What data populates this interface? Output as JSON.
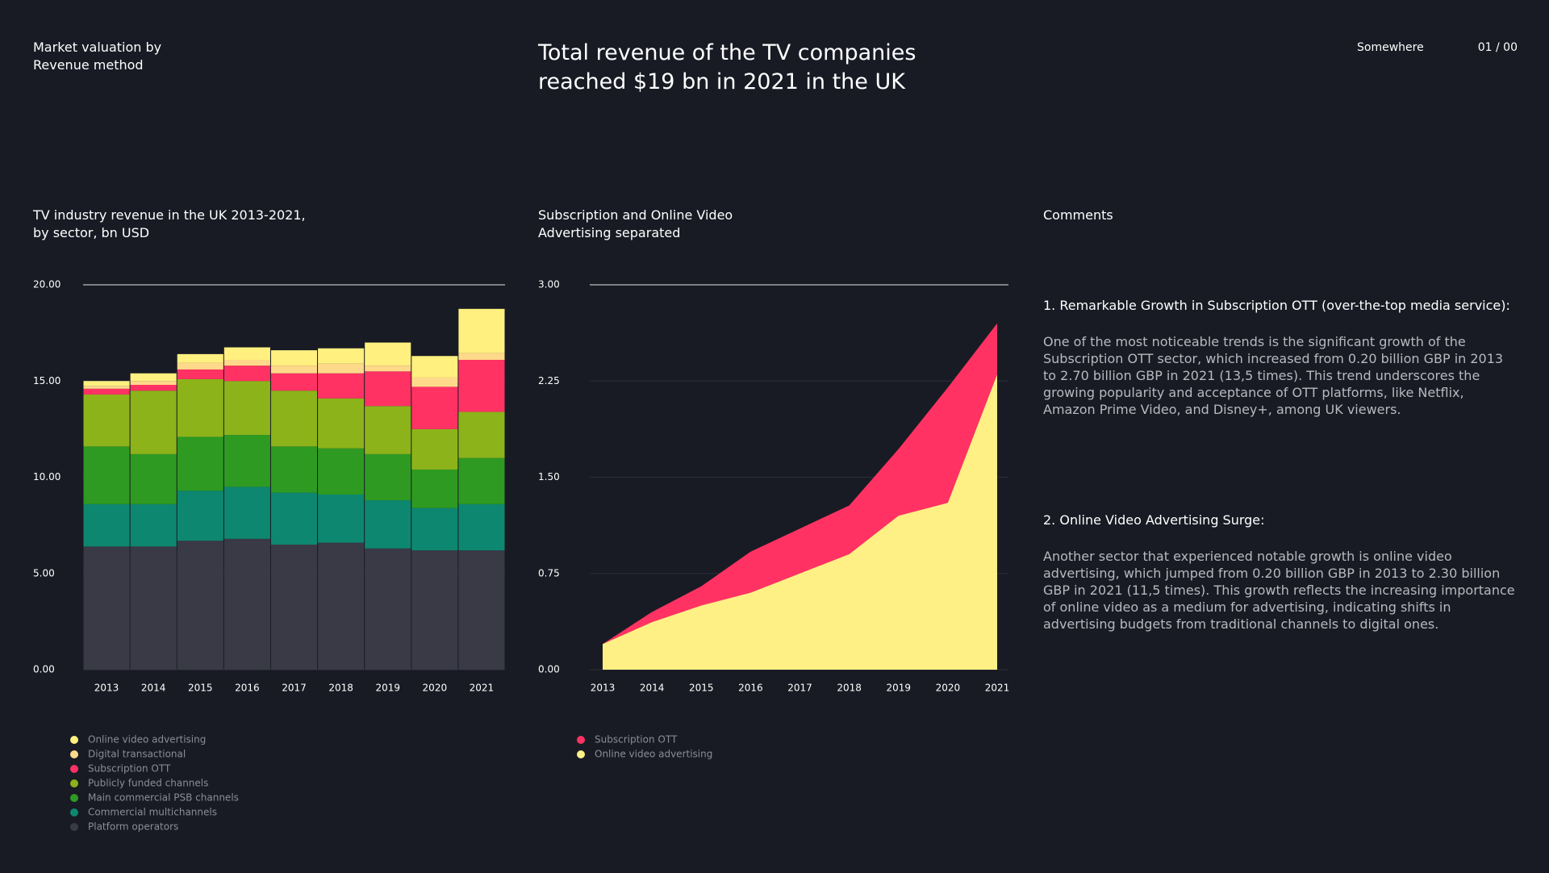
{
  "header": {
    "section": "Market valuation by\nRevenue method",
    "title": "Total revenue of the TV companies\nreached $19 bn in 2021 in the UK",
    "place": "Somewhere",
    "page": "01 / 00"
  },
  "chart_data": [
    {
      "type": "bar",
      "stacked": true,
      "title": "TV industry revenue in the UK 2013-2021,\nby sector, bn USD",
      "categories": [
        "2013",
        "2014",
        "2015",
        "2016",
        "2017",
        "2018",
        "2019",
        "2020",
        "2021"
      ],
      "series": [
        {
          "name": "Platform operators",
          "color": "#3a3a47",
          "values": [
            6.4,
            6.4,
            6.7,
            6.8,
            6.5,
            6.6,
            6.3,
            6.2,
            6.2
          ]
        },
        {
          "name": "Commercial multichannels",
          "color": "#0e8770",
          "values": [
            2.2,
            2.2,
            2.6,
            2.7,
            2.7,
            2.5,
            2.5,
            2.2,
            2.4
          ]
        },
        {
          "name": "Main commercial PSB channels",
          "color": "#2e9a22",
          "values": [
            3.0,
            2.6,
            2.8,
            2.7,
            2.4,
            2.4,
            2.4,
            2.0,
            2.4
          ]
        },
        {
          "name": "Publicly funded channels",
          "color": "#8db31a",
          "values": [
            2.7,
            3.3,
            3.0,
            2.8,
            2.9,
            2.6,
            2.5,
            2.1,
            2.4
          ]
        },
        {
          "name": "Subscription OTT",
          "color": "#ff3263",
          "values": [
            0.3,
            0.3,
            0.5,
            0.8,
            0.9,
            1.3,
            1.8,
            2.2,
            2.7
          ]
        },
        {
          "name": "Digital transactional",
          "color": "#ffd98a",
          "values": [
            0.15,
            0.2,
            0.35,
            0.3,
            0.4,
            0.5,
            0.3,
            0.5,
            0.35
          ]
        },
        {
          "name": "Online video advertising",
          "color": "#fff07f",
          "values": [
            0.25,
            0.4,
            0.45,
            0.65,
            0.8,
            0.8,
            1.2,
            1.1,
            2.3
          ]
        }
      ],
      "ylim": [
        0,
        20
      ],
      "yticks": [
        {
          "value": 0,
          "label": "0.00"
        },
        {
          "value": 5,
          "label": "5.00"
        },
        {
          "value": 10,
          "label": "10.00"
        },
        {
          "value": 15,
          "label": "15.00"
        },
        {
          "value": 20,
          "label": "20.00"
        }
      ],
      "grid": true
    },
    {
      "type": "area",
      "title": "Subscription and Online Video\nAdvertising separated",
      "categories": [
        "2013",
        "2014",
        "2015",
        "2016",
        "2017",
        "2018",
        "2019",
        "2020",
        "2021"
      ],
      "series": [
        {
          "name": "Online video advertising",
          "color": "#fff085",
          "values": [
            0.2,
            0.37,
            0.5,
            0.6,
            0.75,
            0.9,
            1.2,
            1.3,
            2.3
          ]
        },
        {
          "name": "Subscription OTT",
          "color": "#ff3263",
          "values": [
            0.2,
            0.45,
            0.65,
            0.92,
            1.1,
            1.28,
            1.72,
            2.2,
            2.7
          ]
        }
      ],
      "ylim": [
        0,
        3
      ],
      "yticks": [
        {
          "value": 0,
          "label": "0.00"
        },
        {
          "value": 0.75,
          "label": "0.75"
        },
        {
          "value": 1.5,
          "label": "1.50"
        },
        {
          "value": 2.25,
          "label": "2.25"
        },
        {
          "value": 3,
          "label": "3.00"
        }
      ],
      "grid": true
    }
  ],
  "comments": {
    "title": "Comments",
    "items": [
      {
        "heading": "1. Remarkable Growth in Subscription OTT (over-the-top media service):",
        "text": "One of the most noticeable trends is the significant growth of the Subscription OTT sector, which increased from 0.20 billion GBP in 2013 to 2.70 billion GBP in 2021 (13,5 times). This trend underscores the growing popularity and acceptance of OTT platforms, like Netflix, Amazon Prime Video, and Disney+, among UK viewers."
      },
      {
        "heading": "2. Online Video Advertising Surge:",
        "text": "Another sector that experienced notable growth is online video advertising, which jumped from 0.20 billion GBP in 2013 to 2.30 billion GBP in 2021 (11,5 times). This growth reflects the increasing importance of online video as a medium for advertising, indicating shifts in advertising budgets from traditional channels to digital ones."
      }
    ]
  }
}
